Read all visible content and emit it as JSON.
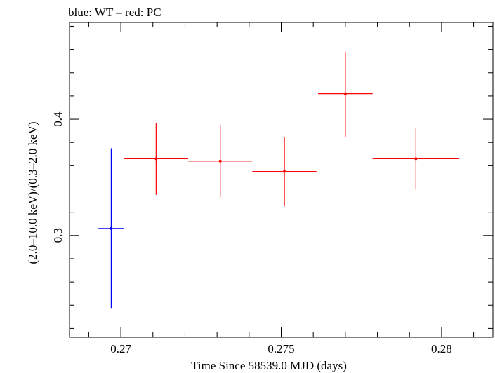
{
  "chart_data": {
    "type": "scatter",
    "title": "blue: WT – red: PC",
    "xlabel": "Time Since 58539.0 MJD (days)",
    "ylabel": "(2.0–10.0 keV)/(0.3–2.0 keV)",
    "xlim": [
      0.2684,
      0.2816
    ],
    "ylim": [
      0.2124,
      0.4833
    ],
    "x_major_ticks": [
      0.27,
      0.275,
      0.28
    ],
    "x_tick_labels": [
      "0.27",
      "0.275",
      "0.28"
    ],
    "x_minor_step": 0.001,
    "y_major_ticks": [
      0.3,
      0.4
    ],
    "y_tick_labels": [
      "0.3",
      "0.4"
    ],
    "y_minor_step": 0.02,
    "grid": false,
    "series": [
      {
        "color": "#0000ff",
        "points": [
          {
            "x": 0.2697,
            "xerr": 0.0004,
            "y": 0.306,
            "yerr_low": 0.069,
            "yerr_high": 0.069
          }
        ]
      },
      {
        "color": "#ff0000",
        "points": [
          {
            "x": 0.2711,
            "xerr": 0.001,
            "y": 0.366,
            "yerr_low": 0.031,
            "yerr_high": 0.031
          },
          {
            "x": 0.2731,
            "xerr": 0.001,
            "y": 0.364,
            "yerr_low": 0.031,
            "yerr_high": 0.031
          },
          {
            "x": 0.2751,
            "xerr": 0.001,
            "y": 0.355,
            "yerr_low": 0.03,
            "yerr_high": 0.03
          },
          {
            "x": 0.277,
            "xerr": 0.00085,
            "y": 0.422,
            "yerr_low": 0.037,
            "yerr_high": 0.036
          },
          {
            "x": 0.2792,
            "xerr": 0.00135,
            "y": 0.366,
            "yerr_low": 0.026,
            "yerr_high": 0.026
          }
        ]
      }
    ]
  }
}
